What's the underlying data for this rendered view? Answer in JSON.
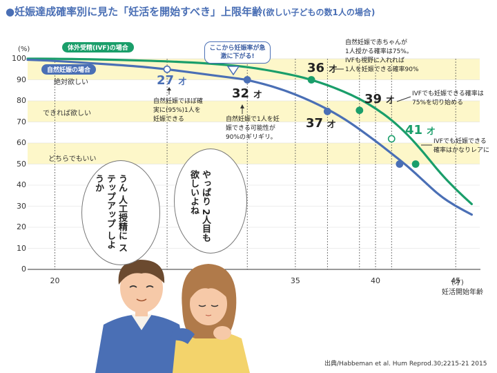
{
  "title": {
    "main": "●妊娠達成確率別に見た「妊活を開始すべき」上限年齢",
    "sub": "(欲しい子どもの数1人の場合)"
  },
  "chart_data": {
    "type": "line",
    "xlabel": "妊活開始年齢",
    "xunit": "(才)",
    "yunit": "(%)",
    "xlim": [
      18.3,
      46.5
    ],
    "ylim": [
      0,
      100
    ],
    "xticks": [
      20,
      35,
      40,
      45
    ],
    "yticks": [
      0,
      10,
      20,
      30,
      40,
      50,
      60,
      70,
      80,
      90,
      100
    ],
    "bands": [
      {
        "from": 90,
        "to": 100,
        "label": "絶対欲しい",
        "color": "#fdf7c9"
      },
      {
        "from": 70,
        "to": 80,
        "label": "できれば欲しい",
        "color": "#fdf7c9"
      },
      {
        "from": 50,
        "to": 60,
        "label": "どちらでもいい",
        "color": "#fdf7c9"
      }
    ],
    "series": [
      {
        "name": "体外受精(IVF)の場合",
        "color": "#1a9e6a",
        "x": [
          18.3,
          20,
          24,
          28,
          31,
          33,
          35,
          36,
          37,
          38,
          39,
          40,
          41,
          42,
          43,
          44,
          45,
          46
        ],
        "y": [
          100,
          100,
          99.5,
          98.5,
          97,
          95,
          92,
          90,
          87.5,
          84.5,
          81,
          76.5,
          71,
          64,
          55.5,
          46,
          38,
          31
        ]
      },
      {
        "name": "自然妊娠の場合",
        "color": "#4a6fb5",
        "x": [
          18.3,
          20,
          22,
          25,
          27,
          29,
          31,
          32,
          34,
          36,
          38,
          40,
          41,
          42,
          43,
          44,
          45,
          46
        ],
        "y": [
          99.5,
          99,
          98,
          96.5,
          95,
          93,
          91,
          90,
          86,
          80,
          72,
          61,
          55,
          49,
          42,
          35,
          30,
          26
        ]
      }
    ],
    "markers": [
      {
        "series": 1,
        "x": 27,
        "y": 95,
        "open": true
      },
      {
        "series": 1,
        "x": 32,
        "y": 90,
        "open": false
      },
      {
        "series": 1,
        "x": 37,
        "y": 75,
        "open": false
      },
      {
        "series": 1,
        "x": 41.5,
        "y": 50,
        "open": false
      },
      {
        "series": 0,
        "x": 36,
        "y": 90,
        "open": false
      },
      {
        "series": 0,
        "x": 39,
        "y": 75.5,
        "open": false
      },
      {
        "series": 0,
        "x": 41,
        "y": 62,
        "open": true
      },
      {
        "series": 0,
        "x": 42.5,
        "y": 50,
        "open": false
      }
    ],
    "dashed_x": [
      20,
      27,
      32,
      35,
      37,
      39,
      40,
      41,
      45
    ],
    "callout": "ここから妊娠率が急激に下がる!",
    "ages": [
      {
        "text": "27",
        "unit": "才",
        "style": "blue"
      },
      {
        "text": "32",
        "unit": "才",
        "style": "dark"
      },
      {
        "text": "36",
        "unit": "才",
        "style": "dark"
      },
      {
        "text": "37",
        "unit": "才",
        "style": "dark"
      },
      {
        "text": "39",
        "unit": "才",
        "style": "dark"
      },
      {
        "text": "41",
        "unit": "才",
        "style": "green"
      }
    ],
    "notes": {
      "n27": "自然妊娠でほぼ確\n実に(95%)1人を\n妊娠できる",
      "n32": "自然妊娠で1人を妊\n娠できる可能性が\n90%のギリギリ。",
      "n36": "自然妊娠で赤ちゃんが\n1人授かる確率は75%。\nIVFも視野に入れれば\n1人を妊娠できる確率90%",
      "n39": "IVFでも妊娠できる確率は\n75%を切り始める",
      "n41": "IVFでも妊娠できる\n確率はかなりレアに"
    }
  },
  "speech": {
    "man": "うん\n人工授精に\nステップアップ\nしようか",
    "woman": "やっぱり\n2人目も\n欲しいよね"
  },
  "source": "出典/Habbeman et al. Hum Reprod.30;2215-21 2015"
}
